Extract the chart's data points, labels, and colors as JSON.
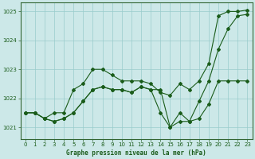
{
  "title": "Graphe pression niveau de la mer (hPa)",
  "bg_color": "#cce8e8",
  "grid_color": "#99cccc",
  "line_color": "#1a5c1a",
  "xlim": [
    -0.5,
    23.5
  ],
  "ylim": [
    1020.6,
    1025.3
  ],
  "yticks": [
    1021,
    1022,
    1023,
    1024,
    1025
  ],
  "xticks": [
    0,
    1,
    2,
    3,
    4,
    5,
    6,
    7,
    8,
    9,
    10,
    11,
    12,
    13,
    14,
    15,
    16,
    17,
    18,
    19,
    20,
    21,
    22,
    23
  ],
  "series": [
    [
      1021.5,
      1021.5,
      1021.3,
      1021.5,
      1021.5,
      1022.3,
      1022.5,
      1023.0,
      1023.0,
      1022.8,
      1022.6,
      1022.6,
      1022.6,
      1022.5,
      1022.2,
      1022.1,
      1022.5,
      1022.3,
      1022.6,
      1023.2,
      1024.85,
      1025.0,
      1025.0,
      1025.05
    ],
    [
      1021.5,
      1021.5,
      1021.3,
      1021.2,
      1021.3,
      1021.5,
      1021.9,
      1022.3,
      1022.4,
      1022.3,
      1022.3,
      1022.2,
      1022.4,
      1022.3,
      1021.5,
      1021.0,
      1021.2,
      1021.2,
      1021.3,
      1021.8,
      1022.6,
      1022.6,
      1022.6,
      1022.6
    ],
    [
      1021.5,
      1021.5,
      1021.3,
      1021.2,
      1021.3,
      1021.5,
      1021.9,
      1022.3,
      1022.4,
      1022.3,
      1022.3,
      1022.2,
      1022.4,
      1022.3,
      1022.3,
      1021.0,
      1021.5,
      1021.2,
      1021.9,
      1022.6,
      1023.7,
      1024.4,
      1024.85,
      1024.9
    ]
  ]
}
